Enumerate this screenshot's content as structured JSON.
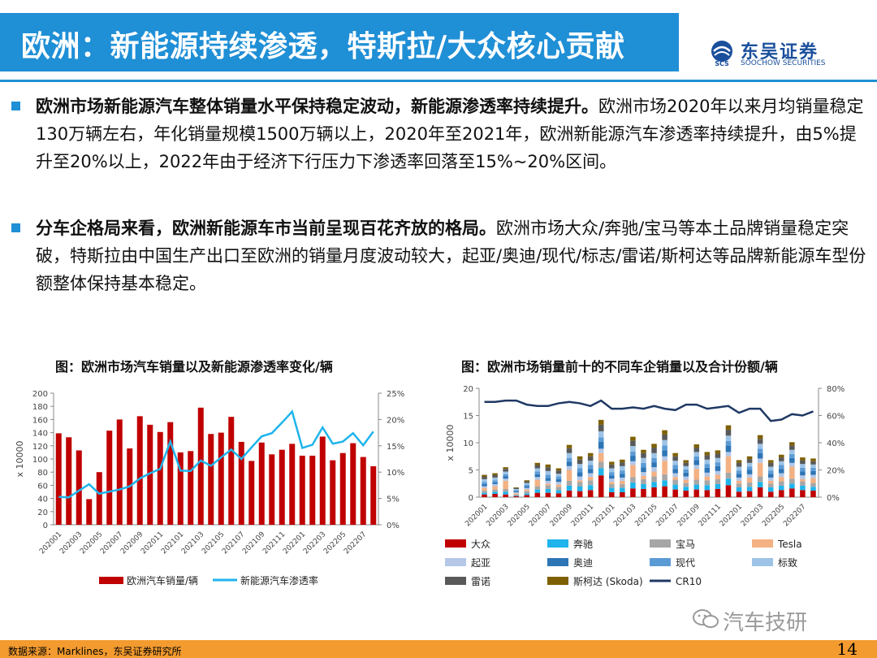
{
  "header": {
    "title": "欧洲：新能源持续渗透，特斯拉/大众核心贡献",
    "logo_cn": "东吴证券",
    "logo_en": "SOOCHOW SECURITIES",
    "logo_mark": "SCS",
    "accent_color": "#1f8fd6"
  },
  "bullets": [
    {
      "bold": "欧洲市场新能源汽车整体销量水平保持稳定波动，新能源渗透率持续提升。",
      "text": "欧洲市场2020年以来月均销量稳定130万辆左右，年化销量规模1500万辆以上，2020年至2021年，欧洲新能源汽车渗透率持续提升，由5%提升至20%以上，2022年由于经济下行压力下渗透率回落至15%~20%区间。"
    },
    {
      "bold": "分车企格局来看，欧洲新能源车市当前呈现百花齐放的格局。",
      "text": "欧洲市场大众/奔驰/宝马等本土品牌销量稳定突破，特斯拉由中国生产出口至欧洲的销量月度波动较大，起亚/奥迪/现代/标志/雷诺/斯柯达等品牌新能源车型份额整体保持基本稳定。"
    }
  ],
  "footer": {
    "source": "数据来源：Marklines，东吴证券研究所",
    "page_number": "14",
    "watermark": "汽车技研"
  },
  "chart_data": [
    {
      "type": "bar+line",
      "title": "图：欧洲市场汽车销量以及新能源渗透率变化/辆",
      "ylabel": "x 10000",
      "ylim": [
        0,
        200
      ],
      "y2lim": [
        0,
        25
      ],
      "y_ticks": [
        "0",
        "20",
        "40",
        "60",
        "80",
        "100",
        "120",
        "140",
        "160",
        "180",
        "200"
      ],
      "y2_ticks": [
        "0%",
        "5%",
        "10%",
        "15%",
        "20%",
        "25%"
      ],
      "x_tick_labels": [
        "202001",
        "202003",
        "202005",
        "202007",
        "202009",
        "202011",
        "202101",
        "202103",
        "202105",
        "202107",
        "202109",
        "202111",
        "202201",
        "202203",
        "202205",
        "202207"
      ],
      "x": [
        "202001",
        "202002",
        "202003",
        "202004",
        "202005",
        "202006",
        "202007",
        "202008",
        "202009",
        "202010",
        "202011",
        "202012",
        "202101",
        "202102",
        "202103",
        "202104",
        "202105",
        "202106",
        "202107",
        "202108",
        "202109",
        "202110",
        "202111",
        "202112",
        "202201",
        "202202",
        "202203",
        "202204",
        "202205",
        "202206",
        "202207",
        "202208"
      ],
      "series": [
        {
          "name": "欧洲汽车销量/辆",
          "type": "bar",
          "color": "#c00000",
          "values": [
            139,
            133,
            113,
            39,
            80,
            143,
            160,
            116,
            165,
            152,
            141,
            156,
            110,
            112,
            178,
            138,
            140,
            164,
            126,
            97,
            125,
            107,
            114,
            123,
            105,
            105,
            134,
            98,
            109,
            124,
            103,
            89
          ]
        },
        {
          "name": "新能源汽车渗透率",
          "type": "line",
          "axis": "right",
          "color": "#1fb4ec",
          "values": [
            5.3,
            5.2,
            6.5,
            7.7,
            5.9,
            6.3,
            6.7,
            7.3,
            8.8,
            9.8,
            10.6,
            15.8,
            10.3,
            10.2,
            12.2,
            11.2,
            12.8,
            14.3,
            12.5,
            14.7,
            16.8,
            17.4,
            19.4,
            21.5,
            14.6,
            15.2,
            18.5,
            15.4,
            15.8,
            17.4,
            15.1,
            17.7
          ]
        }
      ]
    },
    {
      "type": "stacked-bar+line",
      "title": "图：欧洲市场销量前十的不同车企销量以及合计份额/辆",
      "ylabel": "x 10000",
      "ylim": [
        0,
        20
      ],
      "y2lim": [
        0,
        80
      ],
      "y_ticks": [
        "0",
        "5",
        "10",
        "15",
        "20"
      ],
      "y2_ticks": [
        "0%",
        "20%",
        "40%",
        "60%",
        "80%"
      ],
      "x_tick_labels": [
        "202001",
        "202003",
        "202005",
        "202007",
        "202009",
        "202011",
        "202101",
        "202103",
        "202105",
        "202107",
        "202109",
        "202111",
        "202201",
        "202203",
        "202205",
        "202207"
      ],
      "x": [
        "202001",
        "202002",
        "202003",
        "202004",
        "202005",
        "202006",
        "202007",
        "202008",
        "202009",
        "202010",
        "202011",
        "202012",
        "202101",
        "202102",
        "202103",
        "202104",
        "202105",
        "202106",
        "202107",
        "202108",
        "202109",
        "202110",
        "202111",
        "202112",
        "202201",
        "202202",
        "202203",
        "202204",
        "202205",
        "202206",
        "202207",
        "202208"
      ],
      "series": [
        {
          "name": "大众",
          "color": "#c00000",
          "values": [
            0.5,
            0.6,
            0.5,
            0.2,
            0.4,
            0.8,
            0.8,
            0.7,
            1.2,
            1.1,
            1.3,
            4.0,
            0.9,
            0.9,
            1.6,
            1.5,
            1.8,
            2.0,
            1.4,
            1.2,
            1.4,
            1.3,
            1.5,
            2.2,
            1.0,
            1.1,
            1.8,
            1.0,
            1.3,
            1.6,
            1.3,
            1.2
          ]
        },
        {
          "name": "奔驰",
          "color": "#1fb4ec",
          "values": [
            0.3,
            0.4,
            0.5,
            0.1,
            0.3,
            0.6,
            0.7,
            0.6,
            0.9,
            0.9,
            0.9,
            1.3,
            0.8,
            0.8,
            1.1,
            0.9,
            1.0,
            1.1,
            0.9,
            0.7,
            0.9,
            0.9,
            0.9,
            1.2,
            0.8,
            0.8,
            1.0,
            0.8,
            0.8,
            0.9,
            0.8,
            0.7
          ]
        },
        {
          "name": "宝马",
          "color": "#a6a6a6",
          "values": [
            0.4,
            0.4,
            0.5,
            0.2,
            0.4,
            0.6,
            0.7,
            0.6,
            0.9,
            0.8,
            0.9,
            1.2,
            0.7,
            0.7,
            1.0,
            0.9,
            1.0,
            1.1,
            0.9,
            0.7,
            0.9,
            0.9,
            0.9,
            1.1,
            0.7,
            0.8,
            1.0,
            0.7,
            0.8,
            0.9,
            0.8,
            0.7
          ]
        },
        {
          "name": "Tesla",
          "color": "#f4b183",
          "values": [
            0.5,
            0.6,
            1.5,
            0.2,
            0.3,
            1.2,
            0.3,
            0.4,
            2.0,
            0.3,
            0.6,
            1.6,
            0.4,
            0.6,
            2.2,
            0.6,
            0.9,
            2.5,
            0.5,
            0.6,
            2.0,
            0.7,
            0.8,
            3.0,
            0.5,
            0.9,
            2.5,
            0.5,
            0.8,
            2.2,
            0.4,
            0.9
          ]
        },
        {
          "name": "起亚",
          "color": "#b4c7e7",
          "values": [
            0.3,
            0.4,
            0.4,
            0.2,
            0.3,
            0.5,
            0.5,
            0.5,
            0.7,
            0.7,
            0.7,
            0.8,
            0.6,
            0.6,
            0.7,
            0.7,
            0.8,
            0.8,
            0.7,
            0.6,
            0.7,
            0.7,
            0.7,
            0.8,
            0.6,
            0.6,
            0.8,
            0.6,
            0.7,
            0.7,
            0.7,
            0.6
          ]
        },
        {
          "name": "奥迪",
          "color": "#2e75b6",
          "values": [
            0.4,
            0.3,
            0.4,
            0.2,
            0.3,
            0.5,
            0.5,
            0.5,
            0.8,
            0.8,
            0.8,
            1.3,
            0.6,
            0.7,
            1.0,
            0.9,
            0.9,
            1.1,
            0.8,
            0.7,
            0.9,
            0.9,
            0.9,
            1.2,
            0.7,
            0.8,
            1.0,
            0.7,
            0.8,
            0.9,
            0.7,
            0.7
          ]
        },
        {
          "name": "现代",
          "color": "#5b9bd5",
          "values": [
            0.4,
            0.4,
            0.4,
            0.2,
            0.3,
            0.5,
            0.6,
            0.5,
            0.7,
            0.7,
            0.7,
            0.8,
            0.6,
            0.6,
            0.8,
            0.8,
            0.8,
            0.9,
            0.7,
            0.6,
            0.7,
            0.7,
            0.7,
            0.8,
            0.6,
            0.6,
            0.8,
            0.6,
            0.7,
            0.7,
            0.7,
            0.6
          ]
        },
        {
          "name": "标致",
          "color": "#9dc3e6",
          "values": [
            0.5,
            0.5,
            0.5,
            0.2,
            0.3,
            0.6,
            0.7,
            0.5,
            0.9,
            0.8,
            0.8,
            1.1,
            0.7,
            0.8,
            1.0,
            0.9,
            0.9,
            1.0,
            0.8,
            0.6,
            0.8,
            0.8,
            0.8,
            1.0,
            0.7,
            0.7,
            0.9,
            0.7,
            0.7,
            0.8,
            0.7,
            0.6
          ]
        },
        {
          "name": "雷诺",
          "color": "#595959",
          "values": [
            0.5,
            0.5,
            0.5,
            0.2,
            0.3,
            0.6,
            0.7,
            0.6,
            0.9,
            0.8,
            0.8,
            1.2,
            0.7,
            0.7,
            1.0,
            0.9,
            1.0,
            1.0,
            0.8,
            0.6,
            0.8,
            0.8,
            0.8,
            1.1,
            0.7,
            0.7,
            0.9,
            0.7,
            0.7,
            0.8,
            0.7,
            0.6
          ]
        },
        {
          "name": "斯柯达 (Skoda)",
          "color": "#7f6000",
          "values": [
            0.3,
            0.3,
            0.3,
            0.1,
            0.2,
            0.4,
            0.5,
            0.4,
            0.6,
            0.6,
            0.6,
            0.9,
            0.5,
            0.5,
            0.7,
            0.6,
            0.7,
            0.8,
            0.6,
            0.5,
            0.6,
            0.6,
            0.6,
            0.8,
            0.5,
            0.5,
            0.7,
            0.5,
            0.5,
            0.6,
            0.5,
            0.5
          ]
        },
        {
          "name": "CR10",
          "type": "line",
          "axis": "right",
          "color": "#1f3864",
          "values": [
            70,
            70,
            71,
            71,
            68,
            67,
            67,
            69,
            70,
            69,
            67,
            71,
            65,
            65,
            66,
            65,
            67,
            65,
            64,
            68,
            68,
            65,
            66,
            67,
            62,
            65,
            65,
            56,
            57,
            61,
            60,
            63
          ]
        }
      ]
    }
  ]
}
